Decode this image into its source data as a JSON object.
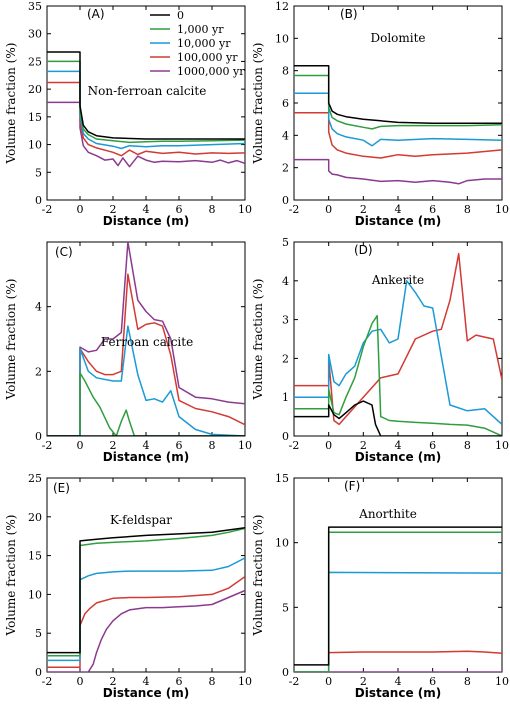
{
  "chart_data": {
    "type": "line",
    "legend": {
      "placement": "top-right of panel A",
      "entries": [
        "0",
        "1,000 yr",
        "10,000 yr",
        "100,000 yr",
        "1000,000 yr"
      ]
    },
    "series_colors": [
      "#000000",
      "#2e9e3f",
      "#1a9ad6",
      "#d23a33",
      "#8b3a8f"
    ],
    "panels": [
      {
        "tag": "(A)",
        "mineral": "Non-ferroan calcite",
        "xlabel": "Distance (m)",
        "ylabel": "Volume fraction (%)",
        "xlim": [
          -2,
          10
        ],
        "ylim": [
          0,
          35
        ],
        "xticks": [
          -2,
          0,
          2,
          4,
          6,
          8,
          10
        ],
        "yticks": [
          0,
          5,
          10,
          15,
          20,
          25,
          30,
          35
        ],
        "series": [
          {
            "x": [
              -2,
              0,
              0,
              0.2,
              0.5,
              1,
              2,
              4,
              6,
              8,
              10
            ],
            "y": [
              26.7,
              26.7,
              17.0,
              13.5,
              12.3,
              11.6,
              11.2,
              11.0,
              11.0,
              11.0,
              11.0
            ]
          },
          {
            "x": [
              -2,
              0,
              0,
              0.2,
              0.5,
              1,
              2,
              3,
              4,
              5,
              6,
              8,
              10
            ],
            "y": [
              25.0,
              25.0,
              16.0,
              12.8,
              11.8,
              11.0,
              10.7,
              10.4,
              10.5,
              10.6,
              10.6,
              10.7,
              10.8
            ]
          },
          {
            "x": [
              -2,
              0,
              0,
              0.2,
              0.5,
              1,
              2,
              2.5,
              3,
              4,
              5,
              6,
              8,
              10
            ],
            "y": [
              23.2,
              23.2,
              15.2,
              12.0,
              11.0,
              10.2,
              9.7,
              9.3,
              9.8,
              9.6,
              9.8,
              9.8,
              10.0,
              10.2
            ]
          },
          {
            "x": [
              -2,
              0,
              0,
              0.2,
              0.5,
              1,
              2,
              2.5,
              3,
              3.5,
              4,
              5,
              6,
              7,
              8,
              9,
              10
            ],
            "y": [
              21.2,
              21.2,
              14.3,
              11.2,
              10.0,
              9.4,
              8.6,
              8.0,
              9.0,
              8.2,
              8.8,
              8.4,
              8.6,
              8.3,
              8.5,
              8.4,
              8.5
            ]
          },
          {
            "x": [
              -2,
              0,
              0,
              0.2,
              0.5,
              1,
              1.5,
              2,
              2.3,
              2.6,
              3,
              3.5,
              4,
              4.5,
              5,
              6,
              7,
              8,
              8.5,
              9,
              9.5,
              10
            ],
            "y": [
              17.6,
              17.6,
              13.0,
              9.8,
              8.6,
              8.0,
              7.2,
              7.4,
              6.2,
              7.6,
              6.0,
              7.9,
              7.2,
              6.8,
              7.0,
              6.9,
              7.1,
              6.8,
              7.2,
              6.7,
              7.1,
              6.6
            ]
          }
        ]
      },
      {
        "tag": "(B)",
        "mineral": "Dolomite",
        "xlabel": "Distance (m)",
        "ylabel": "Volume fraction (%)",
        "xlim": [
          -2,
          10
        ],
        "ylim": [
          0,
          12
        ],
        "xticks": [
          -2,
          0,
          2,
          4,
          6,
          8,
          10
        ],
        "yticks": [
          0,
          2,
          4,
          6,
          8,
          10,
          12
        ],
        "series": [
          {
            "x": [
              -2,
              0,
              0,
              0.2,
              0.5,
              1,
              2,
              3,
              4,
              6,
              8,
              10
            ],
            "y": [
              8.3,
              8.3,
              6.0,
              5.5,
              5.3,
              5.15,
              5.0,
              4.9,
              4.8,
              4.75,
              4.75,
              4.75
            ]
          },
          {
            "x": [
              -2,
              0,
              0,
              0.2,
              0.5,
              1,
              2,
              2.5,
              3,
              4,
              6,
              8,
              10
            ],
            "y": [
              7.7,
              7.7,
              5.7,
              5.1,
              4.9,
              4.7,
              4.5,
              4.4,
              4.55,
              4.6,
              4.6,
              4.6,
              4.65
            ]
          },
          {
            "x": [
              -2,
              0,
              0,
              0.2,
              0.5,
              1,
              2,
              2.5,
              3,
              4,
              6,
              8,
              10
            ],
            "y": [
              6.6,
              6.6,
              5.0,
              4.4,
              4.1,
              3.9,
              3.7,
              3.35,
              3.75,
              3.7,
              3.8,
              3.75,
              3.7
            ]
          },
          {
            "x": [
              -2,
              0,
              0,
              0.2,
              0.5,
              1,
              2,
              3,
              4,
              5,
              6,
              8,
              10
            ],
            "y": [
              5.4,
              5.4,
              4.2,
              3.4,
              3.1,
              2.9,
              2.7,
              2.6,
              2.8,
              2.7,
              2.8,
              2.9,
              3.1
            ]
          },
          {
            "x": [
              -2,
              0,
              0,
              0.2,
              0.5,
              1,
              2,
              3,
              4,
              5,
              6,
              7,
              7.5,
              8,
              9,
              10
            ],
            "y": [
              2.5,
              2.5,
              1.8,
              1.6,
              1.55,
              1.4,
              1.3,
              1.15,
              1.2,
              1.1,
              1.2,
              1.1,
              1.0,
              1.2,
              1.3,
              1.3
            ]
          }
        ]
      },
      {
        "tag": "(C)",
        "mineral": "Ferroan calcite",
        "xlabel": "Distance (m)",
        "ylabel": "Volume fraction (%)",
        "xlim": [
          -2,
          10
        ],
        "ylim": [
          0,
          6
        ],
        "xticks": [
          -2,
          0,
          2,
          4,
          6,
          8,
          10
        ],
        "yticks": [
          0,
          2,
          4
        ],
        "series": [
          {
            "x": [
              -2,
              0,
              10
            ],
            "y": [
              0,
              0,
              0
            ]
          },
          {
            "x": [
              -2,
              0,
              0,
              0.3,
              0.8,
              1.2,
              1.8,
              2.2,
              2.5,
              2.8,
              3.0,
              3.3,
              10
            ],
            "y": [
              0,
              0,
              1.95,
              1.7,
              1.2,
              0.9,
              0.25,
              0.0,
              0.45,
              0.8,
              0.45,
              0.0,
              0.0
            ]
          },
          {
            "x": [
              -2,
              0,
              0,
              0.5,
              1,
              2,
              2.5,
              2.9,
              3.5,
              4,
              4.5,
              5,
              5.5,
              6,
              7,
              8,
              10
            ],
            "y": [
              0,
              0,
              2.7,
              2.0,
              1.8,
              1.7,
              1.7,
              3.4,
              1.9,
              1.1,
              1.15,
              1.05,
              1.4,
              0.6,
              0.2,
              0.05,
              0.0
            ]
          },
          {
            "x": [
              -2,
              0,
              0,
              0.5,
              1,
              1.5,
              2,
              2.5,
              2.9,
              3.5,
              4,
              4.5,
              5,
              5.5,
              6,
              7,
              8,
              9,
              10
            ],
            "y": [
              0,
              0,
              2.7,
              2.3,
              2.0,
              1.9,
              1.9,
              2.0,
              5.0,
              3.3,
              3.45,
              3.5,
              3.4,
              2.5,
              1.1,
              0.85,
              0.75,
              0.6,
              0.35
            ]
          },
          {
            "x": [
              -2,
              0,
              0,
              0.5,
              1,
              1.5,
              2,
              2.5,
              2.9,
              3.5,
              4,
              4.5,
              5,
              5.5,
              6,
              7,
              8,
              9,
              10
            ],
            "y": [
              0,
              0,
              2.75,
              2.6,
              2.65,
              3.0,
              3.0,
              3.2,
              6.0,
              4.2,
              3.85,
              3.6,
              3.55,
              3.0,
              1.5,
              1.2,
              1.15,
              1.05,
              1.0
            ]
          }
        ]
      },
      {
        "tag": "(D)",
        "mineral": "Ankerite",
        "xlabel": "Distance (m)",
        "ylabel": "Volume fraction (%)",
        "xlim": [
          -2,
          10
        ],
        "ylim": [
          0,
          5
        ],
        "xticks": [
          -2,
          0,
          2,
          4,
          6,
          8,
          10
        ],
        "yticks": [
          0,
          1,
          2,
          3,
          4,
          5
        ],
        "series": [
          {
            "x": [
              -2,
              0,
              0,
              0.3,
              0.6,
              1,
              1.5,
              2,
              2.5,
              2.7,
              3,
              10
            ],
            "y": [
              0.5,
              0.5,
              0.8,
              0.55,
              0.45,
              0.6,
              0.8,
              0.9,
              0.8,
              0.3,
              0.0,
              0.0
            ]
          },
          {
            "x": [
              -2,
              0,
              0,
              0.3,
              0.6,
              1,
              1.5,
              2,
              2.5,
              2.8,
              3,
              3.5,
              4,
              5,
              6,
              7,
              8,
              9,
              9.5,
              10
            ],
            "y": [
              0.7,
              0.7,
              1.2,
              0.6,
              0.55,
              1.0,
              1.5,
              2.3,
              2.9,
              3.1,
              0.5,
              0.4,
              0.38,
              0.35,
              0.33,
              0.3,
              0.28,
              0.2,
              0.1,
              0.0
            ]
          },
          {
            "x": [
              -2,
              0,
              0,
              0.3,
              0.6,
              1,
              1.5,
              2,
              2.5,
              3,
              3.5,
              4,
              4.5,
              5,
              5.5,
              6,
              7,
              8,
              9,
              10
            ],
            "y": [
              1.0,
              1.0,
              2.1,
              1.4,
              1.3,
              1.6,
              1.8,
              2.4,
              2.7,
              2.75,
              2.4,
              2.5,
              4.0,
              3.7,
              3.35,
              3.3,
              0.8,
              0.65,
              0.7,
              0.3
            ]
          },
          {
            "x": [
              -2,
              0,
              0,
              0.3,
              0.6,
              1,
              2,
              3,
              3.5,
              4,
              5,
              6,
              6.5,
              7,
              7.5,
              8,
              8.5,
              9,
              9.5,
              10
            ],
            "y": [
              1.3,
              1.3,
              2.0,
              0.4,
              0.3,
              0.5,
              1.0,
              1.5,
              1.55,
              1.6,
              2.5,
              2.7,
              2.75,
              3.5,
              4.7,
              2.45,
              2.6,
              2.55,
              2.5,
              1.45
            ]
          }
        ]
      },
      {
        "tag": "(E)",
        "mineral": "K-feldspar",
        "xlabel": "Distance (m)",
        "ylabel": "Volume fraction (%)",
        "xlim": [
          -2,
          10
        ],
        "ylim": [
          0,
          25
        ],
        "xticks": [
          -2,
          0,
          2,
          4,
          6,
          8,
          10
        ],
        "yticks": [
          0,
          5,
          10,
          15,
          20,
          25
        ],
        "series": [
          {
            "x": [
              -2,
              0,
              0,
              1,
              2,
              4,
              6,
              8,
              10
            ],
            "y": [
              2.5,
              2.5,
              16.9,
              17.1,
              17.3,
              17.6,
              17.8,
              18.0,
              18.6
            ]
          },
          {
            "x": [
              -2,
              0,
              0,
              1,
              2,
              3,
              4,
              6,
              8,
              9,
              10
            ],
            "y": [
              2.1,
              2.1,
              16.3,
              16.6,
              16.7,
              16.8,
              16.9,
              17.2,
              17.6,
              18.0,
              18.5
            ]
          },
          {
            "x": [
              -2,
              0,
              0,
              0.5,
              1,
              2,
              3,
              4,
              6,
              8,
              9,
              10
            ],
            "y": [
              1.5,
              1.5,
              11.9,
              12.4,
              12.7,
              12.9,
              13.0,
              13.0,
              13.0,
              13.1,
              13.6,
              14.7
            ]
          },
          {
            "x": [
              -2,
              0,
              0,
              0.3,
              0.6,
              1,
              2,
              3,
              4,
              6,
              8,
              9,
              10
            ],
            "y": [
              0.6,
              0.6,
              6.0,
              7.5,
              8.2,
              8.9,
              9.5,
              9.6,
              9.6,
              9.7,
              10.0,
              10.8,
              12.3
            ]
          },
          {
            "x": [
              -2,
              0.5,
              0.8,
              1,
              1.3,
              1.6,
              2,
              2.5,
              3,
              4,
              5,
              6,
              7,
              8,
              9,
              10
            ],
            "y": [
              0.0,
              0.0,
              1.0,
              2.5,
              4.2,
              5.5,
              6.6,
              7.5,
              8.0,
              8.3,
              8.3,
              8.4,
              8.5,
              8.7,
              9.6,
              10.5
            ]
          }
        ]
      },
      {
        "tag": "(F)",
        "mineral": "Anorthite",
        "xlabel": "Distance (m)",
        "ylabel": "Volume fraction (%)",
        "xlim": [
          -2,
          10
        ],
        "ylim": [
          0,
          15
        ],
        "xticks": [
          -2,
          0,
          2,
          4,
          6,
          8,
          10
        ],
        "yticks": [
          0,
          5,
          10,
          15
        ],
        "series": [
          {
            "x": [
              -2,
              0,
              0,
              10
            ],
            "y": [
              0.55,
              0.55,
              11.2,
              11.2
            ]
          },
          {
            "x": [
              -2,
              0,
              0,
              10
            ],
            "y": [
              0.0,
              0.0,
              10.8,
              10.8
            ]
          },
          {
            "x": [
              -2,
              0,
              0,
              10
            ],
            "y": [
              0.0,
              0.0,
              7.7,
              7.65
            ]
          },
          {
            "x": [
              -2,
              0,
              0,
              2,
              4,
              6,
              8,
              9,
              10
            ],
            "y": [
              0.0,
              0.0,
              1.5,
              1.55,
              1.55,
              1.55,
              1.6,
              1.55,
              1.45
            ]
          },
          {
            "x": [
              -2,
              0,
              10
            ],
            "y": [
              0.0,
              0.0,
              0.0
            ]
          }
        ]
      }
    ]
  }
}
